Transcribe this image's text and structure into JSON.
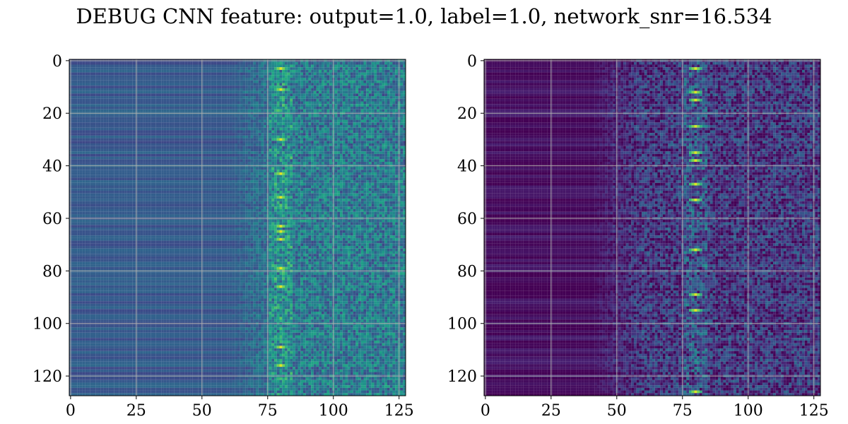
{
  "figure": {
    "title": "DEBUG CNN feature: output=1.0, label=1.0, network_snr=16.534"
  },
  "chart_data": [
    {
      "type": "heatmap",
      "colormap": "viridis",
      "rows": 128,
      "cols": 128,
      "xlim": [
        0,
        127
      ],
      "ylim": [
        0,
        127
      ],
      "y_inverted": true,
      "xticks": [
        0,
        25,
        50,
        75,
        100,
        125
      ],
      "yticks": [
        0,
        20,
        40,
        60,
        80,
        100,
        120
      ],
      "grid": true,
      "grid_color": "#b0b0b0",
      "description_of_values": {
        "background_level": 0.28,
        "onset_column": 70,
        "hotspot_column": 80,
        "hotspot_rows": [
          3,
          11,
          30,
          43,
          52,
          63,
          65,
          68,
          79,
          86,
          109,
          116
        ]
      },
      "value_range": [
        0,
        1
      ]
    },
    {
      "type": "heatmap",
      "colormap": "viridis",
      "rows": 128,
      "cols": 128,
      "xlim": [
        0,
        127
      ],
      "ylim": [
        0,
        127
      ],
      "y_inverted": true,
      "xticks": [
        0,
        25,
        50,
        75,
        100,
        125
      ],
      "yticks": [
        0,
        20,
        40,
        60,
        80,
        100,
        120
      ],
      "grid": true,
      "grid_color": "#b0b0b0",
      "description_of_values": {
        "background_level": 0.03,
        "onset_column": 50,
        "hotspot_column": 80,
        "hotspot_rows": [
          3,
          12,
          15,
          25,
          35,
          38,
          47,
          53,
          72,
          89,
          95,
          126
        ]
      },
      "value_range": [
        0,
        1
      ]
    }
  ]
}
